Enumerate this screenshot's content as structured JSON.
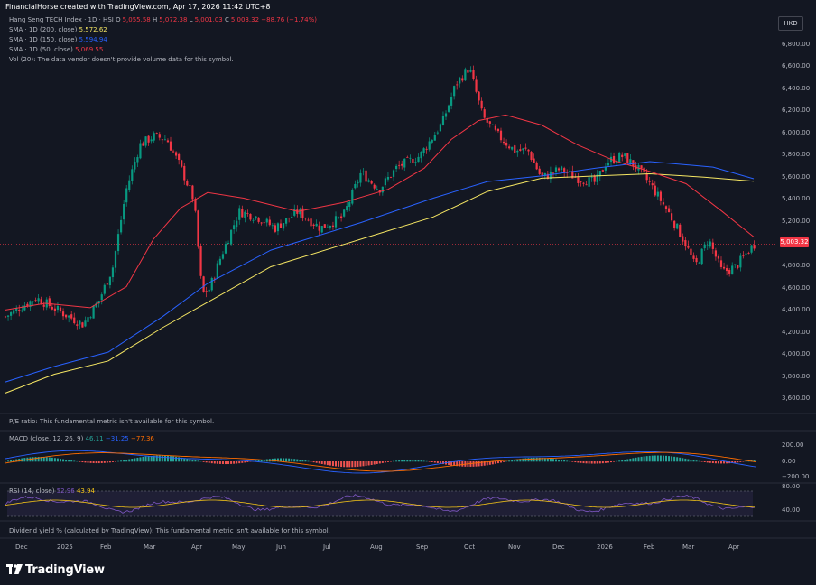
{
  "header": {
    "attribution": "FinancialHorse created with TradingView.com, Apr 17, 2026 11:42 UTC+8"
  },
  "legend": {
    "symbol_line": {
      "name": "Hang Seng TECH Index · 1D · HSI",
      "o_label": "O",
      "o": "5,055.58",
      "h_label": "H",
      "h": "5,072.38",
      "l_label": "L",
      "l": "5,001.03",
      "c_label": "C",
      "c": "5,003.32",
      "change": "−88.76 (−1.74%)"
    },
    "sma200": {
      "label": "SMA · 1D (200, close)",
      "value": "5,572.62",
      "color": "#f5e663"
    },
    "sma150": {
      "label": "SMA · 1D (150, close)",
      "value": "5,594.94",
      "color": "#2962ff"
    },
    "sma50": {
      "label": "SMA · 1D (50, close)",
      "value": "5,069.55",
      "color": "#f23645"
    },
    "vol": "Vol (20): The data vendor doesn't provide volume data for this symbol."
  },
  "currency_button": "HKD",
  "last_price_tag": "5,003.32",
  "pe_panel": "P/E ratio: This fundamental metric isn't available for this symbol.",
  "macd_panel": {
    "label": "MACD (close, 12, 26, 9)",
    "v1": "46.11",
    "v2": "−31.25",
    "v3": "−77.36"
  },
  "rsi_panel": {
    "label": "RSI (14, close)",
    "v1": "52.96",
    "v2": "43.94"
  },
  "dividend_panel": "Dividend yield % (calculated by TradingView): This fundamental metric isn't available for this symbol.",
  "price_axis": [
    "6,800.00",
    "6,600.00",
    "6,400.00",
    "6,200.00",
    "6,000.00",
    "5,800.00",
    "5,600.00",
    "5,400.00",
    "5,200.00",
    "4,800.00",
    "4,600.00",
    "4,400.00",
    "4,200.00",
    "4,000.00",
    "3,800.00",
    "3,600.00"
  ],
  "macd_axis": [
    "200.00",
    "0.00",
    "−200.00"
  ],
  "rsi_axis": [
    "80.00",
    "40.00"
  ],
  "time_axis": [
    "Dec",
    "2025",
    "Feb",
    "Mar",
    "Apr",
    "May",
    "Jun",
    "Jul",
    "Aug",
    "Sep",
    "Oct",
    "Nov",
    "Dec",
    "2026",
    "Feb",
    "Mar",
    "Apr"
  ],
  "brand": "TradingView",
  "colors": {
    "up": "#089981",
    "down": "#f23645",
    "sma50": "#f23645",
    "sma150": "#2962ff",
    "sma200": "#f5e663",
    "macd": "#2962ff",
    "signal": "#ff6d00",
    "rsi": "#7e57c2",
    "rsi_ma": "#f5c518"
  },
  "chart_data": {
    "type": "candlestick",
    "price_range": [
      3500,
      6950
    ],
    "last_close": 5003.32,
    "close_path": [
      {
        "t": "Nov 20",
        "v": 4350
      },
      {
        "t": "Dec",
        "v": 4500
      },
      {
        "t": "Dec mid",
        "v": 4400
      },
      {
        "t": "2025",
        "v": 4300
      },
      {
        "t": "Jan",
        "v": 4450
      },
      {
        "t": "Feb",
        "v": 4700
      },
      {
        "t": "Feb mid",
        "v": 5400
      },
      {
        "t": "Mar",
        "v": 5950
      },
      {
        "t": "Mar mid",
        "v": 6000
      },
      {
        "t": "Mar late",
        "v": 5600
      },
      {
        "t": "Apr",
        "v": 4500
      },
      {
        "t": "Apr mid",
        "v": 4850
      },
      {
        "t": "May",
        "v": 5300
      },
      {
        "t": "Jun",
        "v": 5200
      },
      {
        "t": "Jul",
        "v": 5250
      },
      {
        "t": "Aug",
        "v": 5650
      },
      {
        "t": "Sep",
        "v": 6000
      },
      {
        "t": "Sep late",
        "v": 6450
      },
      {
        "t": "Oct",
        "v": 6600
      },
      {
        "t": "Oct mid",
        "v": 6050
      },
      {
        "t": "Nov",
        "v": 5900
      },
      {
        "t": "Nov mid",
        "v": 5600
      },
      {
        "t": "Dec",
        "v": 5600
      },
      {
        "t": "2026",
        "v": 5800
      },
      {
        "t": "Jan mid",
        "v": 5850
      },
      {
        "t": "Feb",
        "v": 5400
      },
      {
        "t": "Mar",
        "v": 4900
      },
      {
        "t": "Mar mid",
        "v": 5050
      },
      {
        "t": "Apr",
        "v": 4750
      },
      {
        "t": "Apr mid",
        "v": 5003
      }
    ],
    "sma50_end": 5069.55,
    "sma150_end": 5594.94,
    "sma200_end": 5572.62
  }
}
